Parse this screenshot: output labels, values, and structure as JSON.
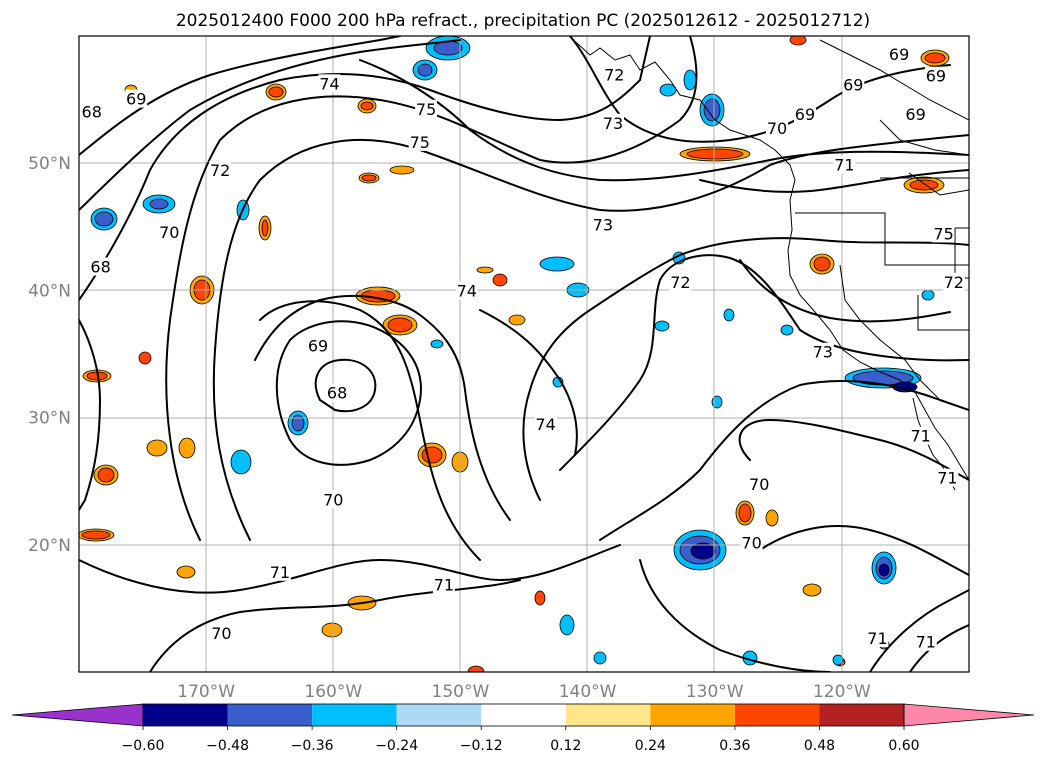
{
  "title": "2025012400 F000 200 hPa refract., precipitation PC (2025012612 - 2025012712)",
  "map": {
    "lat_range": [
      10,
      60
    ],
    "lon_range": [
      -180,
      -110
    ],
    "lat_ticks": [
      {
        "lat": 50,
        "label": "50°N"
      },
      {
        "lat": 40,
        "label": "40°N"
      },
      {
        "lat": 30,
        "label": "30°N"
      },
      {
        "lat": 20,
        "label": "20°N"
      }
    ],
    "lon_ticks": [
      {
        "lon": -170,
        "label": "170°W"
      },
      {
        "lon": -160,
        "label": "160°W"
      },
      {
        "lon": -150,
        "label": "150°W"
      },
      {
        "lon": -140,
        "label": "140°W"
      },
      {
        "lon": -130,
        "label": "130°W"
      },
      {
        "lon": -120,
        "label": "120°W"
      }
    ],
    "grid": true,
    "contour_labels": [
      {
        "text": "68",
        "lon": -179,
        "lat": 54.0
      },
      {
        "text": "69",
        "lon": -175.5,
        "lat": 55.0
      },
      {
        "text": "74",
        "lon": -160.3,
        "lat": 56.2
      },
      {
        "text": "75",
        "lon": -152.7,
        "lat": 54.2
      },
      {
        "text": "75",
        "lon": -153.2,
        "lat": 51.6
      },
      {
        "text": "72",
        "lon": -168.9,
        "lat": 49.4
      },
      {
        "text": "70",
        "lon": -172.9,
        "lat": 44.5
      },
      {
        "text": "68",
        "lon": -178.3,
        "lat": 41.8
      },
      {
        "text": "74",
        "lon": -149.5,
        "lat": 39.9
      },
      {
        "text": "69",
        "lon": -161.2,
        "lat": 35.6
      },
      {
        "text": "68",
        "lon": -159.7,
        "lat": 31.9
      },
      {
        "text": "73",
        "lon": -138.8,
        "lat": 45.1
      },
      {
        "text": "72",
        "lon": -132.7,
        "lat": 40.6
      },
      {
        "text": "72",
        "lon": -137.9,
        "lat": 56.9
      },
      {
        "text": "73",
        "lon": -138.0,
        "lat": 53.1
      },
      {
        "text": "70",
        "lon": -125.1,
        "lat": 52.7
      },
      {
        "text": "69",
        "lon": -122.9,
        "lat": 53.8
      },
      {
        "text": "69",
        "lon": -115.5,
        "lat": 58.5
      },
      {
        "text": "69",
        "lon": -119.1,
        "lat": 56.1
      },
      {
        "text": "69",
        "lon": -112.6,
        "lat": 56.8
      },
      {
        "text": "69",
        "lon": -114.2,
        "lat": 53.8
      },
      {
        "text": "71",
        "lon": -119.8,
        "lat": 49.8
      },
      {
        "text": "75",
        "lon": -112.0,
        "lat": 44.4
      },
      {
        "text": "72",
        "lon": -111.2,
        "lat": 40.6
      },
      {
        "text": "73",
        "lon": -121.5,
        "lat": 35.1
      },
      {
        "text": "74",
        "lon": -143.3,
        "lat": 29.4
      },
      {
        "text": "70",
        "lon": -160.0,
        "lat": 23.5
      },
      {
        "text": "70",
        "lon": -126.5,
        "lat": 24.7
      },
      {
        "text": "70",
        "lon": -127.1,
        "lat": 20.1
      },
      {
        "text": "71",
        "lon": -113.8,
        "lat": 28.5
      },
      {
        "text": "71",
        "lon": -111.7,
        "lat": 25.2
      },
      {
        "text": "71",
        "lon": -164.2,
        "lat": 17.8
      },
      {
        "text": "71",
        "lon": -151.3,
        "lat": 16.8
      },
      {
        "text": "70",
        "lon": -168.8,
        "lat": 13.0
      },
      {
        "text": "71",
        "lon": -117.2,
        "lat": 12.6
      },
      {
        "text": "71",
        "lon": -113.4,
        "lat": 12.3
      }
    ]
  },
  "colorbar": {
    "tick_labels": [
      "−0.60",
      "−0.48",
      "−0.36",
      "−0.24",
      "−0.12",
      "0.12",
      "0.24",
      "0.36",
      "0.48",
      "0.60"
    ],
    "colors": [
      "#9932cc",
      "#00008b",
      "#3a5fcd",
      "#00bfff",
      "#add8f6",
      "#ffffff",
      "#ffe68c",
      "#ffa500",
      "#ff4500",
      "#b22222",
      "#ff88aa"
    ]
  }
}
